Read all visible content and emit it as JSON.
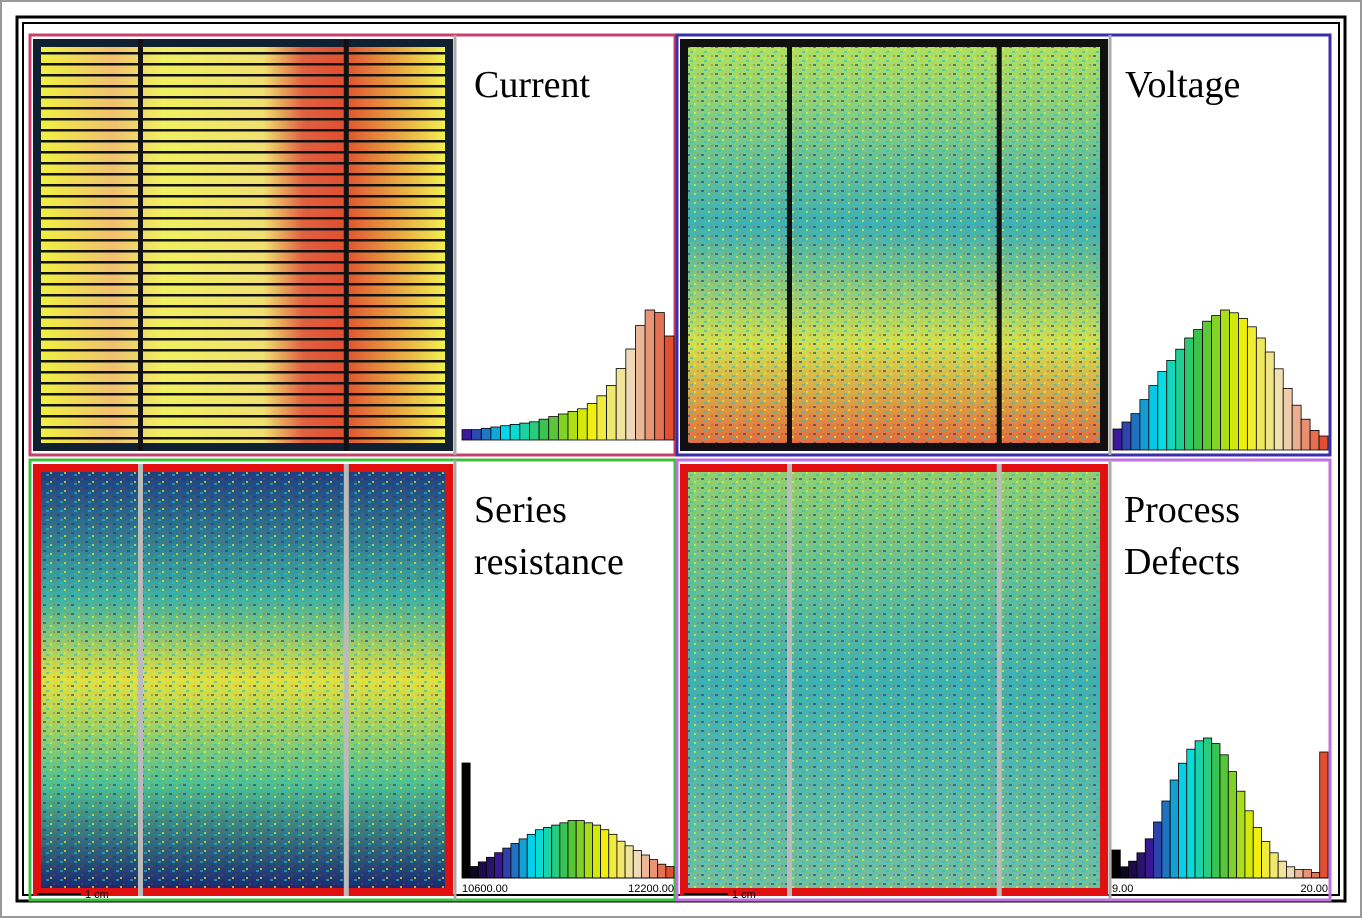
{
  "panels": [
    {
      "label": [
        "Current"
      ],
      "histogram": {
        "values": [
          8,
          8,
          9,
          10,
          11,
          12,
          13,
          14,
          16,
          18,
          20,
          22,
          24,
          28,
          34,
          42,
          55,
          70,
          88,
          100,
          98,
          80
        ],
        "colormap": [
          "#3a1a9a",
          "#00e0f0",
          "#40c040",
          "#f0f000",
          "#f0e0c0",
          "#e05030"
        ]
      }
    },
    {
      "label": [
        "Voltage"
      ],
      "histogram": {
        "values": [
          15,
          20,
          26,
          36,
          46,
          56,
          64,
          72,
          80,
          86,
          92,
          96,
          100,
          98,
          94,
          88,
          80,
          70,
          58,
          44,
          32,
          22,
          14,
          10
        ],
        "colormap": [
          "#3a1a9a",
          "#00e0f0",
          "#40c040",
          "#f0f000",
          "#f0e0c0",
          "#e05030"
        ]
      }
    },
    {
      "label": [
        "Series",
        "resistance"
      ],
      "scale_bar": "1 cm",
      "histogram": {
        "values": [
          100,
          10,
          14,
          18,
          22,
          26,
          30,
          34,
          38,
          42,
          44,
          46,
          48,
          50,
          50,
          48,
          46,
          42,
          38,
          32,
          28,
          24,
          20,
          16,
          12,
          10
        ],
        "colormap": [
          "#000000",
          "#3a1a9a",
          "#00e0f0",
          "#40c040",
          "#f0f000",
          "#f0e0c0",
          "#e05030"
        ],
        "min_label": "10600.00",
        "max_label": "12200.00"
      }
    },
    {
      "label": [
        "Process",
        "Defects"
      ],
      "scale_bar": "1 cm",
      "histogram": {
        "values": [
          20,
          8,
          12,
          18,
          28,
          40,
          55,
          70,
          82,
          92,
          98,
          100,
          96,
          88,
          76,
          62,
          48,
          36,
          26,
          18,
          12,
          8,
          6,
          6,
          4,
          90
        ],
        "colormap": [
          "#000000",
          "#3a1a9a",
          "#00e0f0",
          "#40c040",
          "#f0f000",
          "#f0e0c0",
          "#e05030"
        ],
        "min_label": "9.00",
        "max_label": "20.00"
      }
    }
  ]
}
